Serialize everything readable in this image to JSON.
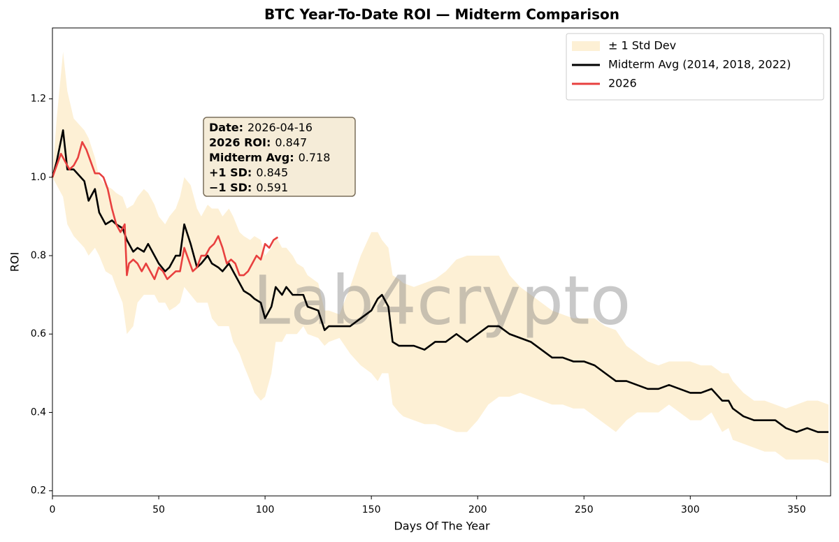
{
  "chart_data": {
    "type": "line",
    "title": "BTC Year-To-Date ROI — Midterm Comparison",
    "xlabel": "Days Of The Year",
    "ylabel": "ROI",
    "xlim": [
      0,
      366
    ],
    "ylim": [
      0.187,
      1.381
    ],
    "xticks": [
      0,
      50,
      100,
      150,
      200,
      250,
      300,
      350
    ],
    "yticks": [
      0.2,
      0.4,
      0.6,
      0.8,
      {
        "value": 1,
        "label": "1.0"
      },
      1.2
    ],
    "legend": "upper right",
    "watermark": "Lab4crypto",
    "band": {
      "name": "± 1 Std Dev",
      "color": "#fdf0d5",
      "x": [
        0,
        2,
        5,
        7,
        10,
        15,
        17,
        20,
        22,
        25,
        28,
        30,
        33,
        35,
        38,
        40,
        43,
        45,
        48,
        50,
        53,
        55,
        58,
        60,
        62,
        65,
        68,
        70,
        73,
        75,
        78,
        80,
        83,
        85,
        88,
        90,
        93,
        95,
        98,
        100,
        103,
        105,
        108,
        110,
        113,
        115,
        118,
        120,
        125,
        128,
        130,
        135,
        140,
        145,
        150,
        153,
        155,
        158,
        160,
        163,
        165,
        170,
        175,
        180,
        185,
        190,
        195,
        200,
        205,
        210,
        215,
        220,
        225,
        230,
        235,
        240,
        245,
        250,
        255,
        260,
        265,
        270,
        275,
        280,
        285,
        290,
        295,
        300,
        305,
        310,
        315,
        318,
        320,
        325,
        330,
        335,
        340,
        345,
        350,
        355,
        360,
        365
      ],
      "upper": [
        1.0,
        1.15,
        1.32,
        1.22,
        1.15,
        1.12,
        1.1,
        1.05,
        1.0,
        0.98,
        0.97,
        0.96,
        0.95,
        0.92,
        0.93,
        0.95,
        0.97,
        0.96,
        0.93,
        0.9,
        0.88,
        0.9,
        0.92,
        0.95,
        1.0,
        0.98,
        0.92,
        0.9,
        0.93,
        0.92,
        0.92,
        0.9,
        0.92,
        0.9,
        0.86,
        0.85,
        0.84,
        0.85,
        0.84,
        0.8,
        0.82,
        0.85,
        0.82,
        0.82,
        0.8,
        0.78,
        0.77,
        0.75,
        0.73,
        0.66,
        0.66,
        0.65,
        0.72,
        0.8,
        0.86,
        0.86,
        0.84,
        0.82,
        0.75,
        0.74,
        0.73,
        0.72,
        0.73,
        0.74,
        0.76,
        0.79,
        0.8,
        0.8,
        0.8,
        0.8,
        0.75,
        0.72,
        0.7,
        0.68,
        0.66,
        0.65,
        0.64,
        0.64,
        0.64,
        0.62,
        0.61,
        0.57,
        0.55,
        0.53,
        0.52,
        0.53,
        0.53,
        0.53,
        0.52,
        0.52,
        0.5,
        0.5,
        0.48,
        0.45,
        0.43,
        0.43,
        0.42,
        0.41,
        0.42,
        0.43,
        0.43,
        0.42
      ],
      "lower": [
        1.0,
        0.98,
        0.95,
        0.88,
        0.85,
        0.82,
        0.8,
        0.82,
        0.8,
        0.76,
        0.75,
        0.72,
        0.68,
        0.6,
        0.62,
        0.68,
        0.7,
        0.7,
        0.7,
        0.68,
        0.68,
        0.66,
        0.67,
        0.68,
        0.72,
        0.7,
        0.68,
        0.68,
        0.68,
        0.64,
        0.62,
        0.62,
        0.62,
        0.58,
        0.55,
        0.52,
        0.48,
        0.45,
        0.43,
        0.44,
        0.5,
        0.58,
        0.58,
        0.6,
        0.6,
        0.6,
        0.62,
        0.6,
        0.59,
        0.57,
        0.58,
        0.59,
        0.55,
        0.52,
        0.5,
        0.48,
        0.5,
        0.5,
        0.42,
        0.4,
        0.39,
        0.38,
        0.37,
        0.37,
        0.36,
        0.35,
        0.35,
        0.38,
        0.42,
        0.44,
        0.44,
        0.45,
        0.44,
        0.43,
        0.42,
        0.42,
        0.41,
        0.41,
        0.39,
        0.37,
        0.35,
        0.38,
        0.4,
        0.4,
        0.4,
        0.42,
        0.4,
        0.38,
        0.38,
        0.4,
        0.35,
        0.36,
        0.33,
        0.32,
        0.31,
        0.3,
        0.3,
        0.28,
        0.28,
        0.28,
        0.28,
        0.27
      ]
    },
    "series": [
      {
        "name": "Midterm Avg (2014, 2018, 2022)",
        "color": "#000000",
        "x": [
          0,
          2,
          5,
          7,
          10,
          15,
          17,
          20,
          22,
          25,
          28,
          30,
          33,
          35,
          38,
          40,
          43,
          45,
          48,
          50,
          53,
          55,
          58,
          60,
          62,
          65,
          68,
          70,
          73,
          75,
          78,
          80,
          83,
          85,
          88,
          90,
          93,
          95,
          98,
          100,
          103,
          105,
          108,
          110,
          113,
          115,
          118,
          120,
          125,
          128,
          130,
          135,
          140,
          145,
          150,
          153,
          155,
          158,
          160,
          163,
          165,
          170,
          175,
          180,
          185,
          190,
          195,
          200,
          205,
          210,
          215,
          220,
          225,
          230,
          235,
          240,
          245,
          250,
          255,
          260,
          265,
          270,
          275,
          280,
          285,
          290,
          295,
          300,
          305,
          310,
          315,
          318,
          320,
          325,
          330,
          335,
          340,
          345,
          350,
          355,
          360,
          365
        ],
        "values": [
          1.0,
          1.04,
          1.12,
          1.02,
          1.02,
          0.99,
          0.94,
          0.97,
          0.91,
          0.88,
          0.89,
          0.88,
          0.87,
          0.84,
          0.81,
          0.82,
          0.81,
          0.83,
          0.8,
          0.78,
          0.76,
          0.77,
          0.8,
          0.8,
          0.88,
          0.83,
          0.77,
          0.78,
          0.8,
          0.78,
          0.77,
          0.76,
          0.78,
          0.76,
          0.73,
          0.71,
          0.7,
          0.69,
          0.68,
          0.64,
          0.67,
          0.72,
          0.7,
          0.72,
          0.7,
          0.7,
          0.7,
          0.67,
          0.66,
          0.61,
          0.62,
          0.62,
          0.62,
          0.64,
          0.66,
          0.69,
          0.7,
          0.67,
          0.58,
          0.57,
          0.57,
          0.57,
          0.56,
          0.58,
          0.58,
          0.6,
          0.58,
          0.6,
          0.62,
          0.62,
          0.6,
          0.59,
          0.58,
          0.56,
          0.54,
          0.54,
          0.53,
          0.53,
          0.52,
          0.5,
          0.48,
          0.48,
          0.47,
          0.46,
          0.46,
          0.47,
          0.46,
          0.45,
          0.45,
          0.46,
          0.43,
          0.43,
          0.41,
          0.39,
          0.38,
          0.38,
          0.38,
          0.36,
          0.35,
          0.36,
          0.35,
          0.35
        ]
      },
      {
        "name": "2026",
        "color": "#e8403f",
        "x": [
          0,
          2,
          4,
          6,
          8,
          10,
          12,
          14,
          16,
          18,
          20,
          22,
          24,
          26,
          28,
          30,
          32,
          34,
          35,
          36,
          38,
          40,
          42,
          44,
          46,
          48,
          50,
          52,
          54,
          56,
          58,
          60,
          62,
          64,
          66,
          68,
          70,
          72,
          74,
          76,
          78,
          80,
          82,
          84,
          86,
          88,
          90,
          92,
          94,
          96,
          98,
          100,
          102,
          104,
          106
        ],
        "values": [
          1.0,
          1.03,
          1.06,
          1.04,
          1.02,
          1.03,
          1.05,
          1.09,
          1.07,
          1.04,
          1.01,
          1.01,
          1.0,
          0.97,
          0.92,
          0.88,
          0.86,
          0.88,
          0.75,
          0.78,
          0.79,
          0.78,
          0.76,
          0.78,
          0.76,
          0.74,
          0.77,
          0.76,
          0.74,
          0.75,
          0.76,
          0.76,
          0.82,
          0.79,
          0.76,
          0.77,
          0.8,
          0.8,
          0.82,
          0.83,
          0.85,
          0.82,
          0.78,
          0.79,
          0.78,
          0.75,
          0.75,
          0.76,
          0.78,
          0.8,
          0.79,
          0.83,
          0.82,
          0.84,
          0.847
        ]
      }
    ],
    "annotation": [
      {
        "label": "Date:",
        "value": "2026-04-16"
      },
      {
        "label": "2026 ROI:",
        "value": "0.847"
      },
      {
        "label": "Midterm Avg:",
        "value": "0.718"
      },
      {
        "label": "+1 SD:",
        "value": "0.845"
      },
      {
        "label": "−1 SD:",
        "value": "0.591"
      }
    ]
  }
}
